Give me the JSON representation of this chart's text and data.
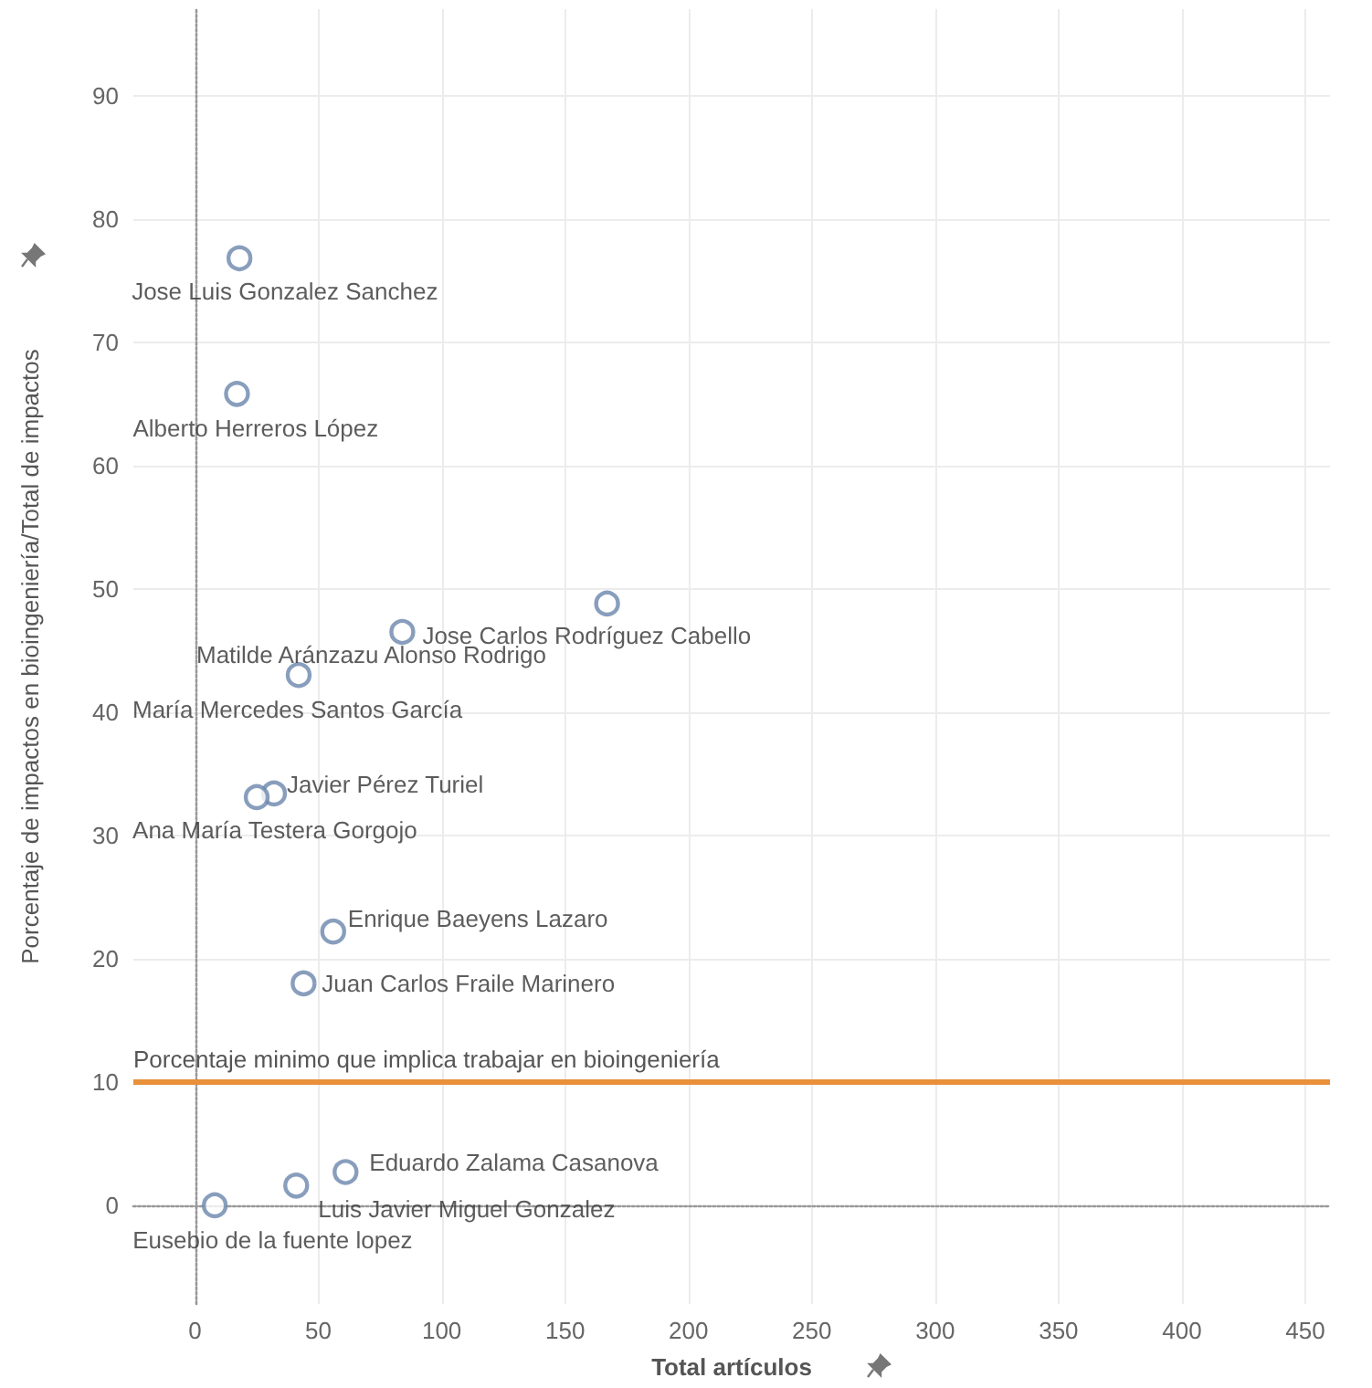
{
  "chart_data": {
    "type": "scatter",
    "xlabel": "Total artículos",
    "ylabel": "Porcentaje de impactos en bioingeniería/Total de impactos",
    "x": [
      18,
      17,
      167,
      84,
      42,
      32,
      25,
      56,
      44,
      61,
      41,
      8
    ],
    "values": [
      76.8,
      65.8,
      48.8,
      46.5,
      43,
      33.4,
      33.1,
      22.2,
      18,
      2.7,
      1.6,
      0
    ],
    "color": "#6a86ab",
    "marker": "circle",
    "xlim": [
      -25,
      460
    ],
    "xticks": [
      0,
      50,
      100,
      150,
      200,
      250,
      300,
      350,
      400,
      450
    ],
    "ylim": [
      -8,
      97
    ],
    "yticks": [
      0,
      10,
      20,
      30,
      40,
      50,
      60,
      70,
      80,
      90
    ],
    "grid": true,
    "ref_lines": [
      {
        "axis": "y",
        "value": 10,
        "label": "Porcentaje minimo que implica trabajar en bioingeniería",
        "color": "#e8913a",
        "line_style": "solid"
      }
    ],
    "annotations": [
      {
        "text": "Jose Luis Gonzalez Sanchez",
        "x": 18,
        "y": 76.8
      },
      {
        "text": "Alberto Herreros López",
        "x": 17,
        "y": 65.8
      },
      {
        "text": "Jose Carlos Rodríguez Cabello",
        "x": 84,
        "y": 46.5
      },
      {
        "text": "Matilde Aránzazu Alonso Rodrigo",
        "x": 42,
        "y": 43
      },
      {
        "text": "María Mercedes Santos García",
        "x": 42,
        "y": 43
      },
      {
        "text": "Javier Pérez Turiel",
        "x": 32,
        "y": 33.4
      },
      {
        "text": "Ana María Testera Gorgojo",
        "x": 25,
        "y": 33.1
      },
      {
        "text": "Enrique Baeyens Lazaro",
        "x": 56,
        "y": 22.2
      },
      {
        "text": "Juan Carlos Fraile Marinero",
        "x": 44,
        "y": 18
      },
      {
        "text": "Eduardo Zalama Casanova",
        "x": 61,
        "y": 2.7
      },
      {
        "text": "Luis Javier Miguel Gonzalez",
        "x": 41,
        "y": 1.6
      },
      {
        "text": "Eusebio de la fuente lopez",
        "x": 8,
        "y": 0
      }
    ]
  }
}
